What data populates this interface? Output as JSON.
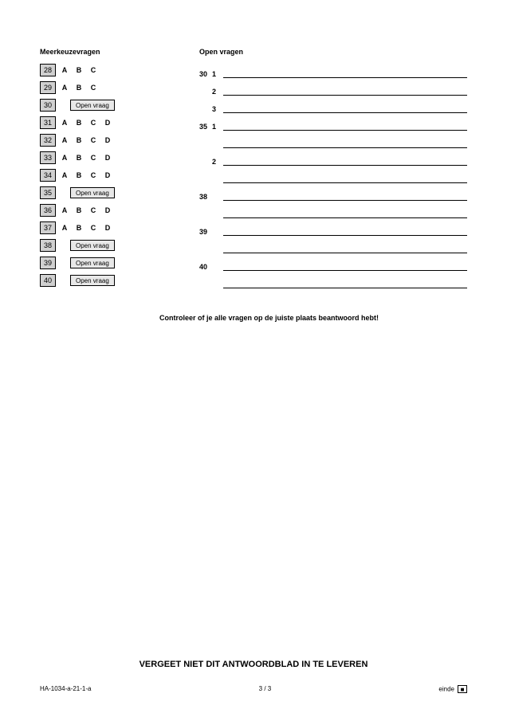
{
  "headings": {
    "mc": "Meerkeuzevragen",
    "open": "Open vragen"
  },
  "mc_rows": [
    {
      "num": "28",
      "choices": [
        "A",
        "B",
        "C"
      ],
      "open": false
    },
    {
      "num": "29",
      "choices": [
        "A",
        "B",
        "C"
      ],
      "open": false
    },
    {
      "num": "30",
      "choices": [],
      "open": true,
      "open_label": "Open vraag"
    },
    {
      "num": "31",
      "choices": [
        "A",
        "B",
        "C",
        "D"
      ],
      "open": false
    },
    {
      "num": "32",
      "choices": [
        "A",
        "B",
        "C",
        "D"
      ],
      "open": false
    },
    {
      "num": "33",
      "choices": [
        "A",
        "B",
        "C",
        "D"
      ],
      "open": false
    },
    {
      "num": "34",
      "choices": [
        "A",
        "B",
        "C",
        "D"
      ],
      "open": false
    },
    {
      "num": "35",
      "choices": [],
      "open": true,
      "open_label": "Open vraag"
    },
    {
      "num": "36",
      "choices": [
        "A",
        "B",
        "C",
        "D"
      ],
      "open": false
    },
    {
      "num": "37",
      "choices": [
        "A",
        "B",
        "C",
        "D"
      ],
      "open": false
    },
    {
      "num": "38",
      "choices": [],
      "open": true,
      "open_label": "Open vraag"
    },
    {
      "num": "39",
      "choices": [],
      "open": true,
      "open_label": "Open vraag"
    },
    {
      "num": "40",
      "choices": [],
      "open": true,
      "open_label": "Open vraag"
    }
  ],
  "open_rows": [
    {
      "num": "30",
      "val": "1"
    },
    {
      "num": "",
      "val": "2"
    },
    {
      "num": "",
      "val": "3"
    },
    {
      "num": "35",
      "val": "1"
    },
    {
      "num": "",
      "val": ""
    },
    {
      "num": "",
      "val": "2"
    },
    {
      "num": "",
      "val": ""
    },
    {
      "num": "38",
      "val": ""
    },
    {
      "num": "",
      "val": ""
    },
    {
      "num": "39",
      "val": ""
    },
    {
      "num": "",
      "val": ""
    },
    {
      "num": "40",
      "val": ""
    },
    {
      "num": "",
      "val": ""
    }
  ],
  "check_note": "Controleer of je alle vragen op de juiste plaats beantwoord hebt!",
  "footer_bold": "VERGEET NIET DIT ANTWOORDBLAD IN TE LEVEREN",
  "footer": {
    "left": "HA-1034-a-21-1-a",
    "center": "3 / 3",
    "right": "einde"
  },
  "colors": {
    "box_bg": "#d0d0d0",
    "badge_bg": "#e8e8e8",
    "border": "#000000",
    "text": "#000000",
    "page_bg": "#ffffff"
  },
  "fonts": {
    "heading_size": 9,
    "body_size": 9,
    "footer_bold_size": 11,
    "footer_small_size": 8
  }
}
